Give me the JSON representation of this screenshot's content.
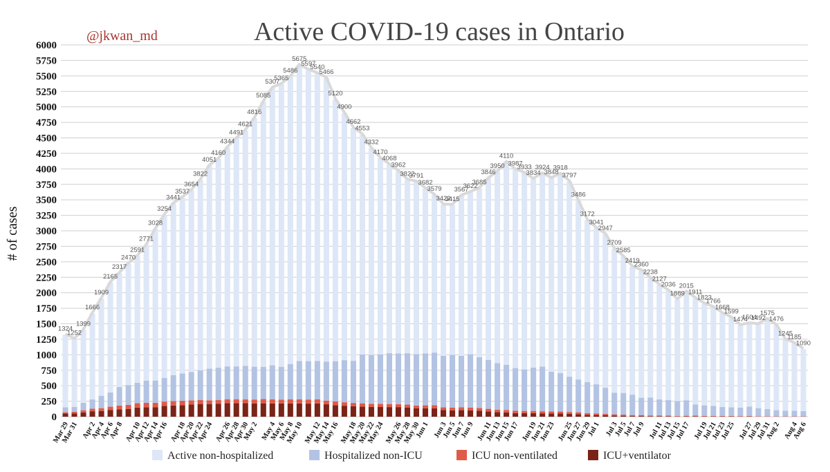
{
  "chart_data": {
    "type": "bar",
    "title": "Active COVID-19 cases in Ontario",
    "subtitle": "@jkwan_md",
    "ylabel": "# of cases",
    "xlabel": "",
    "ylim": [
      0,
      6000
    ],
    "yticks": [
      0,
      250,
      500,
      750,
      1000,
      1250,
      1500,
      1750,
      2000,
      2250,
      2500,
      2750,
      3000,
      3250,
      3500,
      3750,
      4000,
      4250,
      4500,
      4750,
      5000,
      5250,
      5500,
      5750,
      6000
    ],
    "grid": true,
    "stacked": true,
    "legend_position": "bottom",
    "x_tick_labels": [
      "Mar 29",
      "Mar 31",
      "Apr 2",
      "Apr 4",
      "Apr 6",
      "Apr 8",
      "Apr 10",
      "Apr 12",
      "Apr 14",
      "Apr 16",
      "Apr 18",
      "Apr 20",
      "Apr 22",
      "Apr 24",
      "Apr 26",
      "Apr 28",
      "Apr 30",
      "May 2",
      "May 4",
      "May 6",
      "May 8",
      "May 10",
      "May 12",
      "May 14",
      "May 16",
      "May 18",
      "May 20",
      "May 22",
      "May 24",
      "May 26",
      "May 28",
      "May 30",
      "Jun 1",
      "Jun 3",
      "Jun 5",
      "Jun 7",
      "Jun 9",
      "Jun 11",
      "Jun 13",
      "Jun 15",
      "Jun 17",
      "Jun 19",
      "Jun 21",
      "Jun 23",
      "Jun 25",
      "Jun 27",
      "Jun 29",
      "Jul 1",
      "Jul 3",
      "Jul 5",
      "Jul 7",
      "Jul 9",
      "Jul 11",
      "Jul 13",
      "Jul 15",
      "Jul 17",
      "Jul 19",
      "Jul 21",
      "Jul 23",
      "Jul 25",
      "Jul 27",
      "Jul 29",
      "Jul 31",
      "Aug 2",
      "Aug 4",
      "Aug 6"
    ],
    "total_labels": [
      "1324",
      "1252",
      "1399",
      "1666",
      "1909",
      "2165",
      "2317",
      "2470",
      "2591",
      "2771",
      "3028",
      "3254",
      "3441",
      "3537",
      "3654",
      "3822",
      "4051",
      "4160",
      "4344",
      "4491",
      "4621",
      "4816",
      "5085",
      "5307",
      "5365",
      "5486",
      "5675",
      "5597",
      "5540",
      "5466",
      "5120",
      "4900",
      "4662",
      "4553",
      "4332",
      "4170",
      "4068",
      "3962",
      "3822",
      "3791",
      "3682",
      "3579",
      "3422",
      "3415",
      "3567",
      "3622",
      "3685",
      "3846",
      "3950",
      "4110",
      "3987",
      "3933",
      "3834",
      "3924",
      "3848",
      "3918",
      "3797",
      "3486",
      "3172",
      "3041",
      "2947",
      "2709",
      "2585",
      "2419",
      "2360",
      "2238",
      "2127",
      "2036",
      "1889",
      "2015",
      "1911",
      "1823",
      "1766",
      "1668",
      "1599",
      "1474",
      "1504",
      "1492",
      "1575",
      "1476",
      "1245",
      "1185",
      "1090"
    ],
    "series": [
      {
        "name": "Active non-hospitalized",
        "color": "#dde7f7",
        "values": [
          1173,
          1093,
          1175,
          1388,
          1571,
          1774,
          1838,
          1959,
          2044,
          2188,
          2444,
          2630,
          2770,
          2840,
          2931,
          3074,
          3276,
          3369,
          3532,
          3679,
          3801,
          4009,
          4281,
          4477,
          4559,
          4635,
          4776,
          4700,
          4641,
          4576,
          4224,
          3987,
          3760,
          3547,
          3335,
          3164,
          3043,
          2939,
          2797,
          2781,
          2659,
          2544,
          2440,
          2417,
          2584,
          2614,
          2723,
          2929,
          3086,
          3271,
          3202,
          3170,
          3041,
          3116,
          3122,
          3215,
          3151,
          2885,
          2614,
          2518,
          2480,
          2321,
          2202,
          2063,
          2054,
          1928,
          1847,
          1768,
          1636,
          1750,
          1713,
          1640,
          1593,
          1511,
          1447,
          1329,
          1342,
          1354,
          1452,
          1371,
          1150,
          1090,
          1000
        ]
      },
      {
        "name": "Hospitalized non-ICU",
        "color": "#b3c3e3",
        "values": [
          80,
          80,
          120,
          150,
          200,
          230,
          300,
          320,
          330,
          360,
          360,
          380,
          420,
          440,
          460,
          480,
          510,
          520,
          530,
          530,
          540,
          530,
          520,
          550,
          530,
          570,
          620,
          620,
          620,
          630,
          650,
          680,
          680,
          790,
          790,
          800,
          820,
          820,
          830,
          830,
          840,
          850,
          830,
          850,
          830,
          860,
          820,
          790,
          750,
          730,
          690,
          670,
          700,
          720,
          640,
          620,
          570,
          530,
          500,
          470,
          420,
          350,
          350,
          330,
          280,
          290,
          260,
          250,
          240,
          250,
          180,
          170,
          160,
          145,
          140,
          135,
          150,
          130,
          115,
          100,
          90,
          90,
          85
        ]
      },
      {
        "name": "ICU non-ventilated",
        "color": "#e05a48",
        "values": [
          20,
          25,
          35,
          40,
          45,
          55,
          60,
          65,
          70,
          70,
          70,
          70,
          71,
          72,
          68,
          63,
          60,
          61,
          65,
          63,
          62,
          62,
          68,
          66,
          62,
          66,
          66,
          66,
          64,
          60,
          60,
          56,
          54,
          52,
          50,
          50,
          50,
          48,
          50,
          46,
          48,
          50,
          46,
          46,
          48,
          45,
          44,
          44,
          42,
          40,
          38,
          36,
          36,
          34,
          34,
          32,
          30,
          30,
          28,
          26,
          22,
          20,
          18,
          16,
          16,
          12,
          12,
          10,
          10,
          10,
          10,
          9,
          9,
          8,
          8,
          7,
          8,
          8,
          8,
          5,
          5,
          5,
          5
        ]
      },
      {
        "name": "ICU+ventilator",
        "color": "#7a2418",
        "values": [
          51,
          54,
          69,
          88,
          93,
          106,
          119,
          126,
          147,
          153,
          154,
          174,
          180,
          185,
          195,
          205,
          205,
          210,
          217,
          219,
          218,
          215,
          216,
          214,
          214,
          215,
          213,
          211,
          215,
          200,
          186,
          177,
          168,
          164,
          157,
          156,
          155,
          155,
          145,
          134,
          135,
          135,
          106,
          102,
          105,
          103,
          98,
          83,
          72,
          69,
          57,
          57,
          57,
          54,
          52,
          51,
          46,
          41,
          30,
          27,
          25,
          18,
          15,
          10,
          10,
          8,
          8,
          8,
          3,
          5,
          8,
          4,
          4,
          4,
          4,
          3,
          4,
          0,
          0,
          0,
          0,
          0,
          0
        ]
      }
    ]
  }
}
